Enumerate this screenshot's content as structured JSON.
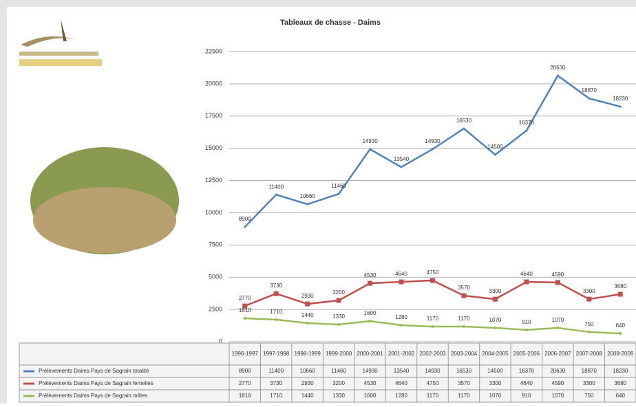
{
  "chart_data": {
    "type": "line",
    "title": "Tableaux de chasse - Daims",
    "categories": [
      "1996-1997",
      "1997-1998",
      "1998-1999",
      "1999-2000",
      "2000-2001",
      "2001-2002",
      "2002-2003",
      "2003-2004",
      "2004-2005",
      "2005-2006",
      "2006-2007",
      "2007-2008",
      "2008-2009"
    ],
    "series": [
      {
        "name": "Prélèvements Daims Pays de Sagrain totalité",
        "color": "#4f81bd",
        "values": [
          8900,
          11400,
          10660,
          11460,
          14930,
          13540,
          14930,
          16530,
          14500,
          16370,
          20630,
          18870,
          18230
        ]
      },
      {
        "name": "Prélèvements Daims Pays de Sagrain femelles",
        "color": "#c0504d",
        "values": [
          2770,
          3730,
          2930,
          3200,
          4530,
          4640,
          4750,
          3570,
          3300,
          4640,
          4590,
          3300,
          3680
        ]
      },
      {
        "name": "Prélèvements Daims Pays de Sagrain mâles",
        "color": "#9bbb59",
        "values": [
          1810,
          1710,
          1440,
          1330,
          1600,
          1280,
          1170,
          1170,
          1070,
          910,
          1070,
          750,
          640
        ]
      }
    ],
    "ylim": [
      0,
      22500
    ],
    "yticks": [
      0,
      2500,
      5000,
      7500,
      10000,
      12500,
      15000,
      17500,
      20000,
      22500
    ],
    "grid": true
  }
}
